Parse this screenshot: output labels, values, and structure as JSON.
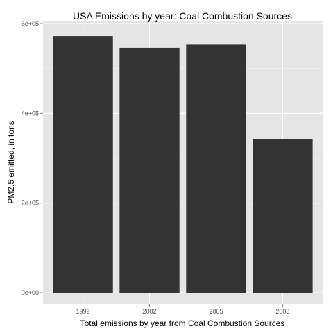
{
  "chart_data": {
    "type": "bar",
    "title": "USA Emissions by year: Coal Combustion Sources",
    "xlabel": "Total emissions by year from Coal Combustion Sources",
    "ylabel": "PM2.5 emitted, in tons",
    "categories": [
      "1999",
      "2002",
      "2005",
      "2008"
    ],
    "values": [
      572000,
      546000,
      553000,
      343000
    ],
    "ylim": [
      0,
      620000
    ],
    "yticks": [
      0,
      200000,
      400000,
      600000
    ],
    "ytick_labels": [
      "0e+00",
      "2e+05",
      "4e+05",
      "6e+05"
    ],
    "grid": true,
    "legend": "none",
    "colors": {
      "panel": "#e5e5e5",
      "grid_major": "#ffffff",
      "grid_minor": "#f2f2f2",
      "bar": "#333333",
      "tick": "#7f7f7f"
    }
  }
}
